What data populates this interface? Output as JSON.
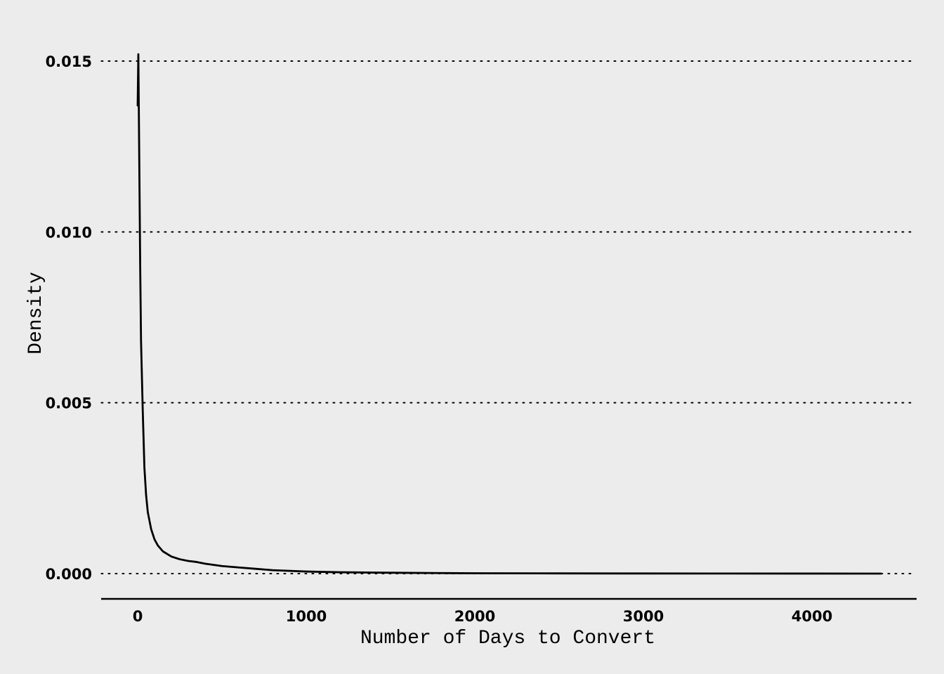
{
  "chart_data": {
    "type": "line",
    "xlabel": "Number of Days to Convert",
    "ylabel": "Density",
    "xlim": [
      -215,
      4600
    ],
    "ylim": [
      -0.00075,
      0.0152
    ],
    "grid": "horizontal-dotted",
    "x_ticks": [
      {
        "value": 0,
        "label": "0"
      },
      {
        "value": 1000,
        "label": "1000"
      },
      {
        "value": 2000,
        "label": "2000"
      },
      {
        "value": 3000,
        "label": "3000"
      },
      {
        "value": 4000,
        "label": "4000"
      }
    ],
    "y_ticks": [
      {
        "value": 0,
        "label": "0.000"
      },
      {
        "value": 0.005,
        "label": "0.005"
      },
      {
        "value": 0.01,
        "label": "0.010"
      },
      {
        "value": 0.015,
        "label": "0.015"
      }
    ],
    "series": [
      {
        "color": "#000000",
        "x": [
          0,
          4,
          10,
          15,
          20,
          30,
          40,
          50,
          60,
          80,
          100,
          120,
          150,
          200,
          250,
          300,
          350,
          400,
          500,
          600,
          700,
          800,
          1000,
          1200,
          1400,
          1600,
          1800,
          2000,
          2500,
          3000,
          3500,
          4000,
          4410
        ],
        "y": [
          0.0137,
          0.0152,
          0.0118,
          0.009,
          0.0068,
          0.0048,
          0.0031,
          0.0023,
          0.0018,
          0.0013,
          0.001,
          0.00082,
          0.00065,
          0.0005,
          0.00042,
          0.00037,
          0.00034,
          0.00029,
          0.00022,
          0.00018,
          0.00014,
          0.0001,
          6e-05,
          4e-05,
          3e-05,
          2.2e-05,
          1.5e-05,
          1e-05,
          6e-06,
          4e-06,
          2e-06,
          1e-06,
          0.0
        ]
      }
    ]
  }
}
